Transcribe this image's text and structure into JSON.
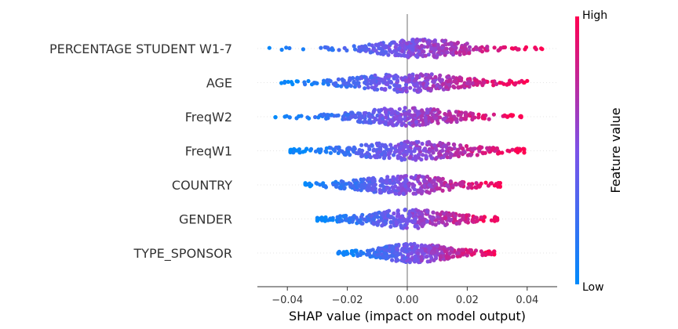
{
  "chart_data": {
    "type": "scatter",
    "subtype": "shap-beeswarm",
    "xlabel": "SHAP value (impact on model output)",
    "xlim": [
      -0.05,
      0.05
    ],
    "xticks": [
      -0.04,
      -0.02,
      0.0,
      0.02,
      0.04
    ],
    "xtick_labels": [
      "−0.04",
      "−0.02",
      "0.00",
      "0.02",
      "0.04"
    ],
    "features": [
      {
        "name": "PERCENTAGE STUDENT W1-7",
        "min": -0.046,
        "max": 0.045,
        "core": [
          -0.022,
          0.032
        ]
      },
      {
        "name": "AGE",
        "min": -0.042,
        "max": 0.04,
        "core": [
          -0.032,
          0.033
        ]
      },
      {
        "name": "FreqW2",
        "min": -0.044,
        "max": 0.038,
        "core": [
          -0.03,
          0.03
        ]
      },
      {
        "name": "FreqW1",
        "min": -0.039,
        "max": 0.039,
        "core": [
          -0.034,
          0.036
        ]
      },
      {
        "name": "COUNTRY",
        "min": -0.034,
        "max": 0.031,
        "core": [
          -0.03,
          0.029
        ]
      },
      {
        "name": "GENDER",
        "min": -0.03,
        "max": 0.03,
        "core": [
          -0.027,
          0.029
        ]
      },
      {
        "name": "TYPE_SPONSOR",
        "min": -0.023,
        "max": 0.029,
        "core": [
          -0.02,
          0.025
        ]
      }
    ],
    "colorbar": {
      "label": "Feature value",
      "high_label": "High",
      "low_label": "Low",
      "low_color": "#008afb",
      "mid_color": "#7c52e8",
      "high_color": "#ff0051"
    },
    "grid": false,
    "zero_line": true
  }
}
